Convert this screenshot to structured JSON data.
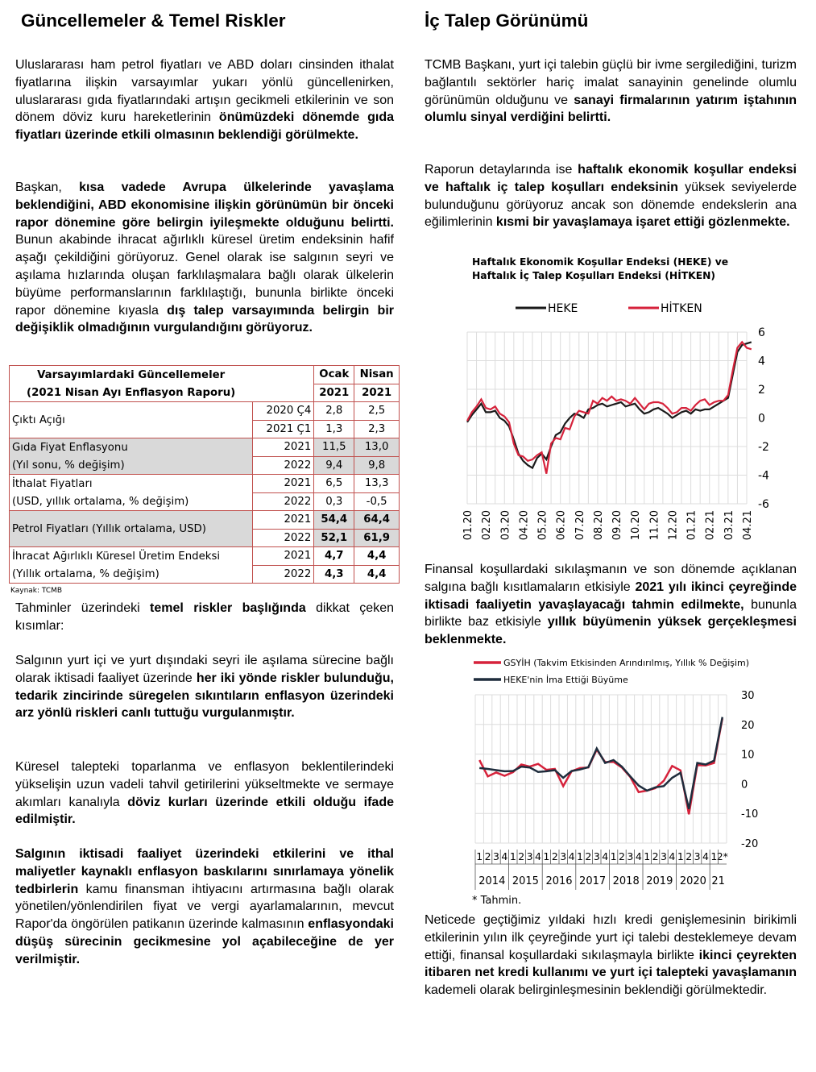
{
  "left": {
    "title": "Güncellemeler & Temel Riskler",
    "p1": [
      {
        "t": "Uluslararası ham petrol fiyatları ve ABD doları cinsinden ithalat fiyatlarına ilişkin varsayımlar yukarı yönlü güncellenirken, uluslararası gıda fiyatlarındaki artışın gecikmeli etkilerinin ve son dönem döviz kuru hareketlerinin ",
        "b": false
      },
      {
        "t": "önümüzdeki dönemde gıda fiyatları üzerinde etkili olmasının beklendiği görülmekte.",
        "b": true
      }
    ],
    "p2": [
      {
        "t": "Başkan, ",
        "b": false
      },
      {
        "t": "kısa vadede Avrupa ülkelerinde yavaşlama beklendiğini, ABD ekonomisine ilişkin görünümün bir önceki rapor dönemine göre belirgin iyileşmekte olduğunu belirtti.",
        "b": true
      },
      {
        "t": " Bunun akabinde ihracat ağırlıklı küresel üretim endeksinin hafif aşağı çekildiğini görüyoruz. Genel olarak ise salgının seyri ve aşılama hızlarında oluşan farklılaşmalara bağlı olarak ülkelerin büyüme performanslarının farklılaştığı, bununla birlikte önceki rapor dönemine kıyasla ",
        "b": false
      },
      {
        "t": "dış talep varsayımında belirgin bir değişiklik olmadığının vurgulandığını görüyoruz.",
        "b": true
      }
    ],
    "table": {
      "header": {
        "title1": "Varsayımlardaki Güncellemeler",
        "title2": "(2021 Nisan Ayı Enflasyon Raporu)",
        "c1a": "Ocak",
        "c1b": "2021",
        "c2a": "Nisan",
        "c2b": "2021"
      },
      "rows": [
        {
          "label": "Çıktı Açığı",
          "sub": "",
          "grey": false,
          "bold": false,
          "r": [
            {
              "y": "2020 Ç4",
              "a": "2,8",
              "b": "2,5"
            },
            {
              "y": "2021 Ç1",
              "a": "1,3",
              "b": "2,3"
            }
          ]
        },
        {
          "label": "Gıda Fiyat Enflasyonu",
          "sub": "(Yıl sonu, % değişim)",
          "grey": true,
          "bold": false,
          "r": [
            {
              "y": "2021",
              "a": "11,5",
              "b": "13,0"
            },
            {
              "y": "2022",
              "a": "9,4",
              "b": "9,8"
            }
          ]
        },
        {
          "label": "İthalat Fiyatları",
          "sub": "(USD, yıllık ortalama, % değişim)",
          "grey": false,
          "bold": false,
          "r": [
            {
              "y": "2021",
              "a": "6,5",
              "b": "13,3"
            },
            {
              "y": "2022",
              "a": "0,3",
              "b": "-0,5"
            }
          ]
        },
        {
          "label": "Petrol Fiyatları (Yıllık ortalama, USD)",
          "sub": "",
          "grey": true,
          "bold": true,
          "r": [
            {
              "y": "2021",
              "a": "54,4",
              "b": "64,4"
            },
            {
              "y": "2022",
              "a": "52,1",
              "b": "61,9"
            }
          ]
        },
        {
          "label": "İhracat Ağırlıklı Küresel Üretim Endeksi",
          "sub": "(Yıllık ortalama, % değişim)",
          "grey": false,
          "bold": true,
          "r": [
            {
              "y": "2021",
              "a": "4,7",
              "b": "4,4"
            },
            {
              "y": "2022",
              "a": "4,3",
              "b": "4,4"
            }
          ]
        }
      ]
    },
    "source": "Kaynak: TCMB",
    "p3": [
      {
        "t": "Tahminler üzerindeki ",
        "b": false
      },
      {
        "t": "temel riskler başlığında",
        "b": true
      },
      {
        "t": " dikkat çeken kısımlar:",
        "b": false
      }
    ],
    "p4": [
      {
        "t": "Salgının yurt içi ve yurt dışındaki seyri ile aşılama sürecine bağlı olarak iktisadi faaliyet üzerinde ",
        "b": false
      },
      {
        "t": "her iki yönde riskler bulunduğu, tedarik zincirinde süregelen sıkıntıların enflasyon üzerindeki arz yönlü riskleri canlı tuttuğu vurgulanmıştır.",
        "b": true
      }
    ],
    "p5": [
      {
        "t": "Küresel talepteki toparlanma ve enflasyon beklentilerindeki yükselişin uzun vadeli tahvil getirilerini yükseltmekte ve sermaye akımları kanalıyla ",
        "b": false
      },
      {
        "t": "döviz kurları üzerinde etkili olduğu ifade edilmiştir.",
        "b": true
      }
    ],
    "p6": [
      {
        "t": "Salgının iktisadi faaliyet üzerindeki etkilerini ve ithal maliyetler kaynaklı enflasyon baskılarını sınırlamaya yönelik tedbirlerin",
        "b": true
      },
      {
        "t": " kamu finansman ihtiyacını artırmasına bağlı olarak yönetilen/yönlendirilen fiyat ve vergi ayarlamalarının, mevcut Rapor'da öngörülen patikanın üzerinde kalmasının ",
        "b": false
      },
      {
        "t": "enflasyondaki düşüş sürecinin gecikmesine yol açabileceğine de yer verilmiştir.",
        "b": true
      }
    ]
  },
  "right": {
    "title": "İç Talep Görünümü",
    "p1": [
      {
        "t": "TCMB Başkanı, yurt içi talebin güçlü bir ivme sergilediğini, turizm bağlantılı sektörler hariç imalat sanayinin genelinde olumlu görünümün olduğunu ve ",
        "b": false
      },
      {
        "t": "sanayi firmalarının yatırım iştahının olumlu sinyal verdiğini belirtti.",
        "b": true
      }
    ],
    "p2": [
      {
        "t": "Raporun detaylarında ise ",
        "b": false
      },
      {
        "t": "haftalık ekonomik koşullar endeksi ve haftalık iç talep koşulları endeksinin",
        "b": true
      },
      {
        "t": " yüksek seviyelerde bulunduğunu görüyoruz ancak son dönemde endekslerin ana eğilimlerinin ",
        "b": false
      },
      {
        "t": "kısmi bir yavaşlamaya işaret ettiği gözlenmekte.",
        "b": true
      }
    ],
    "p3": [
      {
        "t": "Finansal koşullardaki sıkılaşmanın ve son dönemde açıklanan salgına bağlı kısıtlamaların etkisiyle ",
        "b": false
      },
      {
        "t": "2021 yılı ikinci çeyreğinde iktisadi faaliyetin yavaşlayacağı tahmin edilmekte,",
        "b": true
      },
      {
        "t": " bununla birlikte baz etkisiyle ",
        "b": false
      },
      {
        "t": "yıllık büyümenin yüksek gerçekleşmesi beklenmekte.",
        "b": true
      }
    ],
    "p4": [
      {
        "t": "Neticede geçtiğimiz yıldaki hızlı kredi genişlemesinin birikimli etkilerinin yılın ilk çeyreğinde yurt içi talebi desteklemeye devam ettiği, finansal koşullardaki sıkılaşmayla birlikte ",
        "b": false
      },
      {
        "t": "ikinci çeyrekten itibaren net kredi kullanımı ve yurt içi talepteki yavaşlamanın",
        "b": true
      },
      {
        "t": " kademeli olarak belirginleşmesinin beklendiği görülmektedir.",
        "b": false
      }
    ],
    "footnote": "* Tahmin."
  },
  "chart_data": [
    {
      "type": "line",
      "title": "Haftalık Ekonomik Koşullar Endeksi (HEKE) ve Haftalık İç Talep Koşulları Endeksi (HİTKEN)",
      "title_line1": "Haftalık Ekonomik Koşullar Endeksi (HEKE) ve",
      "title_line2": "Haftalık İç Talep Koşulları Endeksi (HİTKEN)",
      "ylim": [
        -6,
        6
      ],
      "yticks": [
        6,
        4,
        2,
        0,
        -2,
        -4,
        -6
      ],
      "xtick_labels": [
        "01.20",
        "02.20",
        "03.20",
        "04.20",
        "05.20",
        "06.20",
        "07.20",
        "08.20",
        "09.20",
        "10.20",
        "11.20",
        "12.20",
        "01.21",
        "02.21",
        "03.21",
        "04.21"
      ],
      "x": [
        0,
        0.25,
        0.5,
        0.75,
        1,
        1.25,
        1.5,
        1.75,
        2,
        2.25,
        2.5,
        2.75,
        3,
        3.25,
        3.5,
        3.75,
        4,
        4.25,
        4.5,
        4.75,
        5,
        5.25,
        5.5,
        5.75,
        6,
        6.25,
        6.5,
        6.75,
        7,
        7.25,
        7.5,
        7.75,
        8,
        8.25,
        8.5,
        8.75,
        9,
        9.25,
        9.5,
        9.75,
        10,
        10.25,
        10.5,
        10.75,
        11,
        11.25,
        11.5,
        11.75,
        12,
        12.25,
        12.5,
        12.75,
        13,
        13.25,
        13.5,
        13.75,
        14,
        14.25,
        14.5,
        14.75,
        15,
        15.25
      ],
      "series": [
        {
          "name": "HEKE",
          "color": "#1a1a1a",
          "values": [
            -0.3,
            0.2,
            0.6,
            1.0,
            0.4,
            0.4,
            0.5,
            0.0,
            -0.2,
            -0.6,
            -1.5,
            -2.5,
            -3.0,
            -3.3,
            -3.5,
            -2.8,
            -2.5,
            -2.9,
            -2.0,
            -1.2,
            -1.0,
            -0.4,
            0.0,
            0.3,
            0.2,
            0.0,
            0.6,
            0.7,
            0.9,
            1.0,
            0.8,
            0.9,
            1.0,
            1.1,
            0.8,
            0.9,
            1.0,
            0.6,
            0.3,
            0.4,
            0.6,
            0.7,
            0.5,
            0.3,
            0.0,
            0.2,
            0.4,
            0.5,
            0.3,
            0.6,
            0.5,
            0.6,
            0.6,
            0.8,
            1.0,
            1.2,
            1.4,
            3.0,
            4.6,
            5.1,
            5.2,
            5.3
          ]
        },
        {
          "name": "HİTKEN",
          "color": "#d6223b",
          "values": [
            -0.2,
            0.4,
            0.8,
            1.3,
            0.7,
            0.6,
            0.8,
            0.3,
            0.1,
            -0.3,
            -1.8,
            -2.6,
            -2.7,
            -3.0,
            -2.9,
            -2.6,
            -2.4,
            -3.9,
            -1.8,
            -1.4,
            -1.5,
            -0.7,
            -0.8,
            0.1,
            0.5,
            0.4,
            0.3,
            1.2,
            1.0,
            1.4,
            1.2,
            1.5,
            1.2,
            1.3,
            1.2,
            1.0,
            1.4,
            1.0,
            0.6,
            1.0,
            1.1,
            1.1,
            1.0,
            0.7,
            0.3,
            0.4,
            0.7,
            0.7,
            0.5,
            0.9,
            1.2,
            1.3,
            0.9,
            1.1,
            1.2,
            1.2,
            1.6,
            3.3,
            4.9,
            5.3,
            4.9,
            4.8
          ]
        }
      ],
      "legend_placement": "top",
      "grid": true
    },
    {
      "type": "line",
      "title": "",
      "ylim": [
        -20,
        30
      ],
      "yticks": [
        30,
        20,
        10,
        0,
        -10,
        -20
      ],
      "quarter_labels": [
        "1",
        "2",
        "3",
        "4",
        "1",
        "2",
        "3",
        "4",
        "1",
        "2",
        "3",
        "4",
        "1",
        "2",
        "3",
        "4",
        "1",
        "2",
        "3",
        "4",
        "1",
        "2",
        "3",
        "4",
        "1",
        "2",
        "3",
        "4",
        "1",
        "2*"
      ],
      "year_labels": [
        "2014",
        "2015",
        "2016",
        "2017",
        "2018",
        "2019",
        "2020",
        "21"
      ],
      "series": [
        {
          "name": "GSYİH (Takvim Etkisinden Arındırılmış, Yıllık % Değişim)",
          "color": "#d6223b",
          "values": [
            8.0,
            2.5,
            3.8,
            2.7,
            3.9,
            6.5,
            5.8,
            6.7,
            4.7,
            5.0,
            -0.8,
            4.2,
            5.3,
            5.5,
            11.5,
            7.3,
            7.4,
            5.5,
            2.3,
            -2.8,
            -2.3,
            -1.5,
            1.0,
            6.0,
            4.5,
            -10.3,
            6.3,
            6.2,
            7.0,
            22.0
          ]
        },
        {
          "name": "HEKE'nin İma Ettiği Büyüme",
          "color": "#1f2d3d",
          "values": [
            5.3,
            5.0,
            4.6,
            4.2,
            4.3,
            5.8,
            5.5,
            4.0,
            4.2,
            4.6,
            2.0,
            4.3,
            4.8,
            5.6,
            11.9,
            7.0,
            8.0,
            5.8,
            2.5,
            -0.6,
            -2.3,
            -1.2,
            -0.8,
            2.0,
            3.7,
            -8.5,
            7.0,
            6.5,
            7.8,
            22.5
          ]
        }
      ],
      "legend_placement": "top",
      "grid": true
    }
  ]
}
